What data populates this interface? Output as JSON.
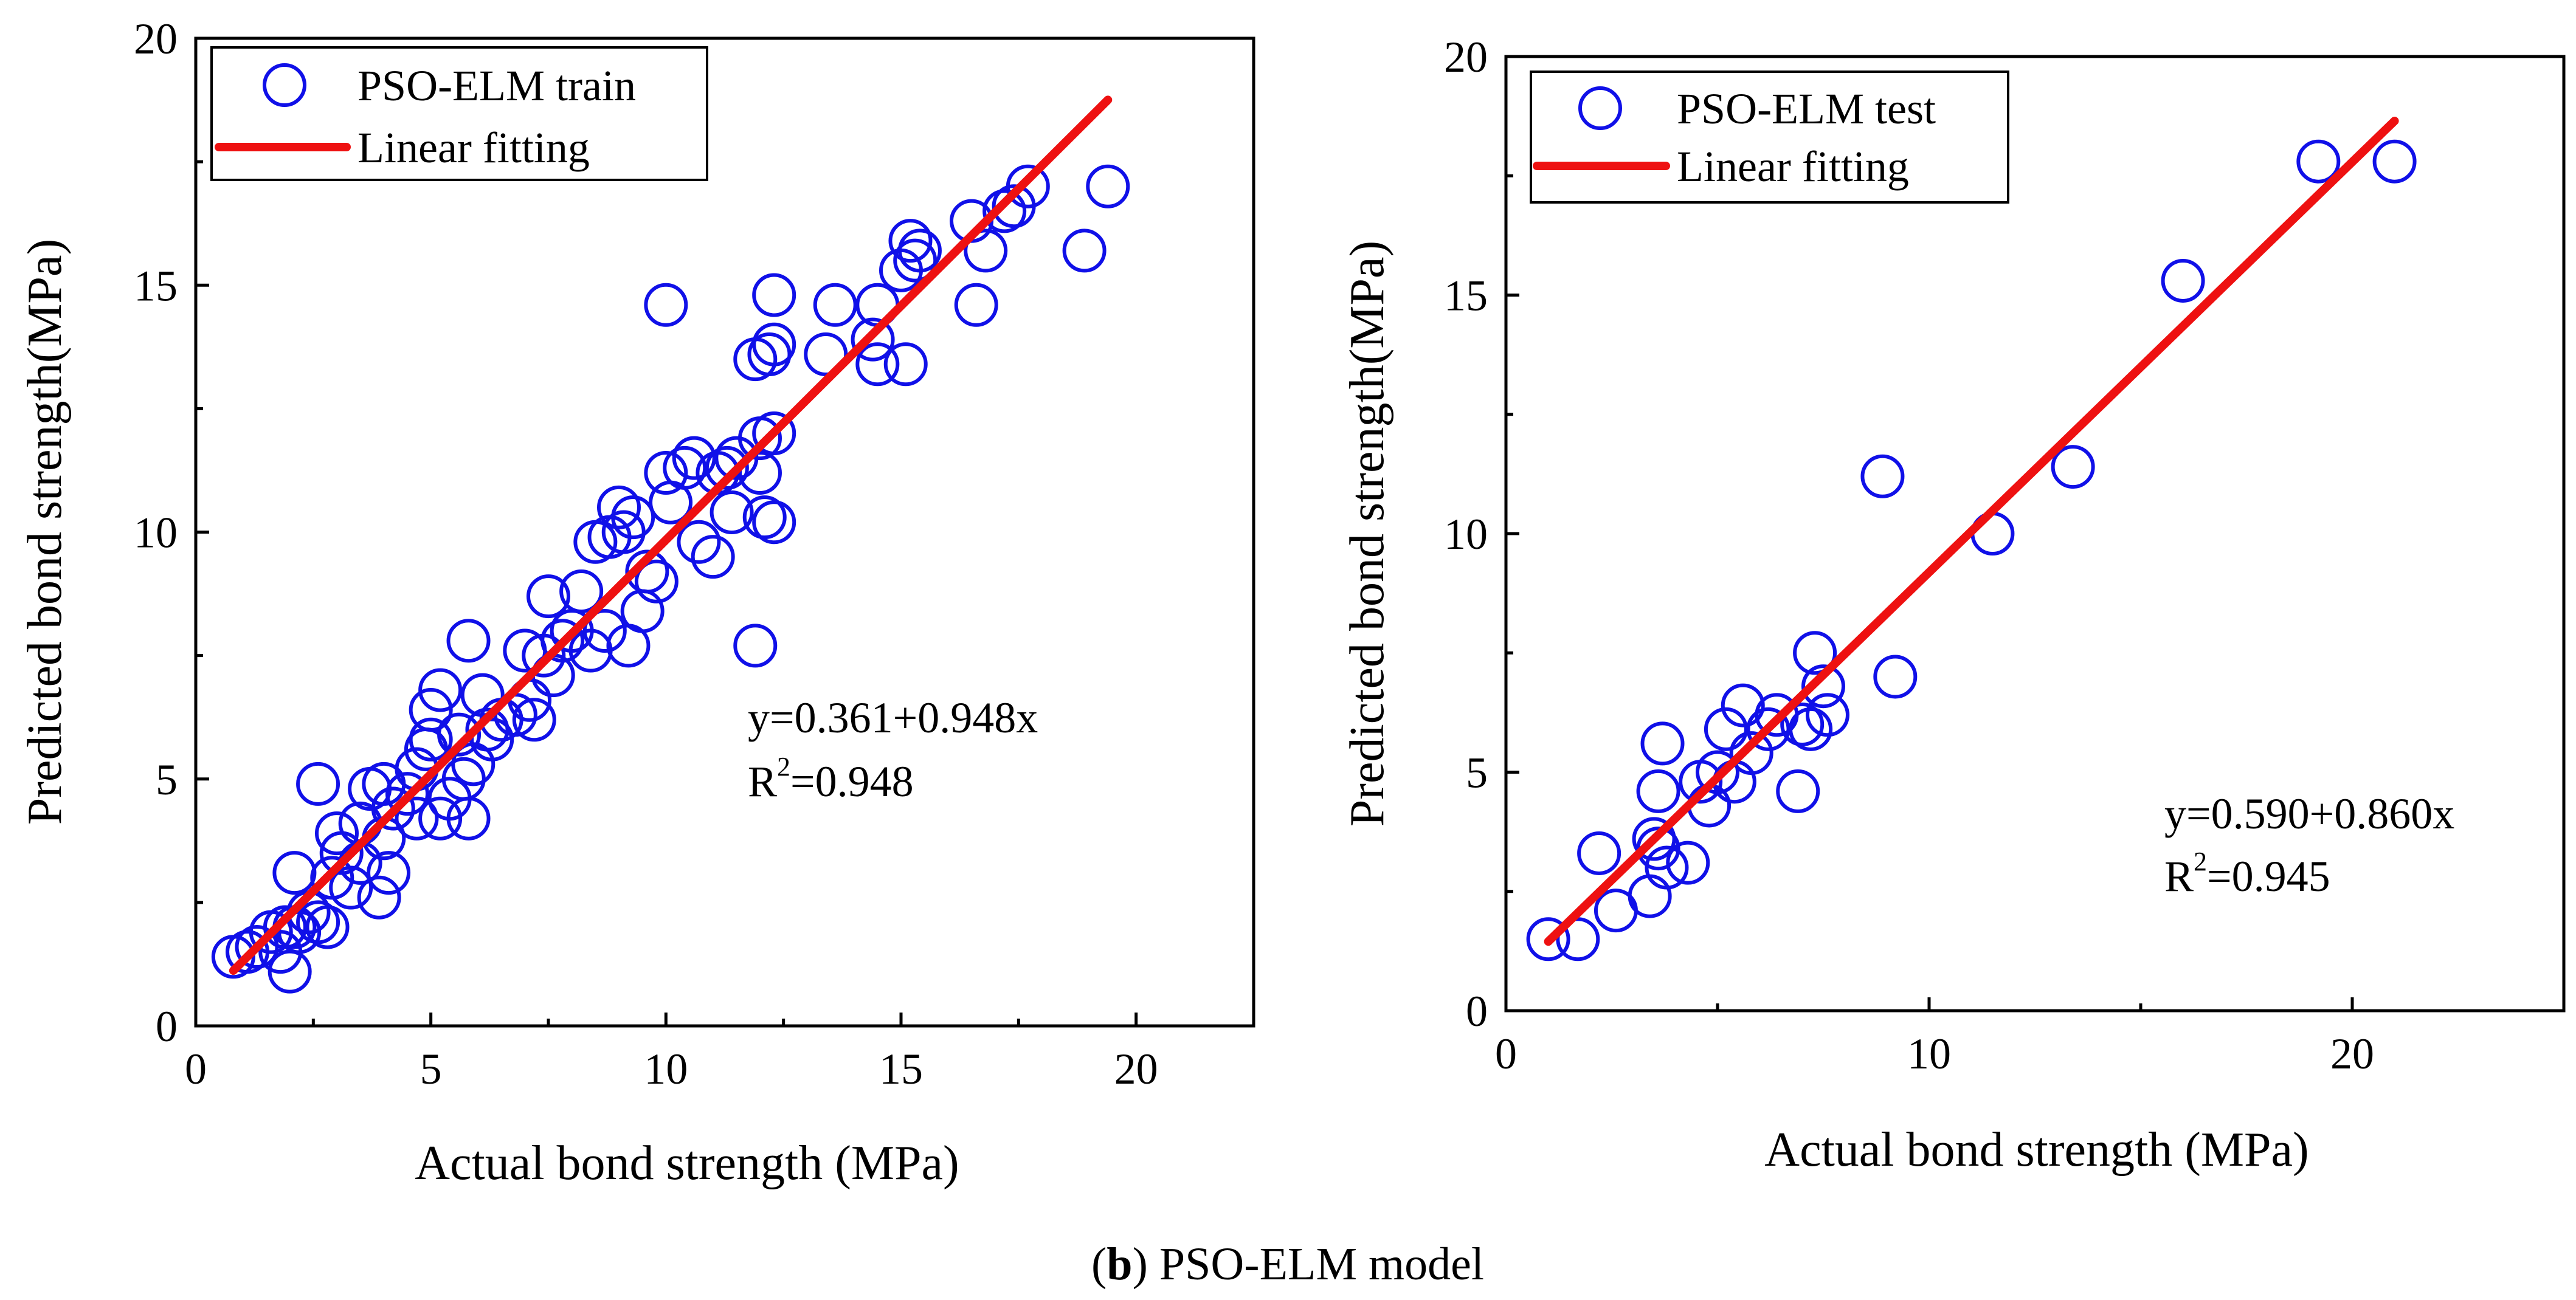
{
  "caption": {
    "letter": "b",
    "text": "PSO-ELM model"
  },
  "chart_data": [
    {
      "type": "scatter",
      "xlabel": "Actual bond strength (MPa)",
      "ylabel": "Predicted bond strength(MPa)",
      "xlim": [
        0,
        22.5
      ],
      "ylim": [
        0,
        20
      ],
      "xticks": [
        "0",
        "5",
        "10",
        "15",
        "20"
      ],
      "yticks": [
        "0",
        "5",
        "10",
        "15",
        "20"
      ],
      "legend": {
        "points": "PSO-ELM train",
        "line": "Linear fitting",
        "position": "top-left"
      },
      "equation": "y=0.361+0.948x",
      "r2_prefix": "R",
      "r2_sup": "2",
      "r2_value": "=0.948",
      "fit": {
        "intercept": 0.361,
        "slope": 0.948,
        "x_range": [
          0.8,
          19.4
        ]
      },
      "colors": {
        "points": "#1010e8",
        "line": "#ee1111"
      },
      "points": [
        [
          0.8,
          1.4
        ],
        [
          1.1,
          1.5
        ],
        [
          1.3,
          1.6
        ],
        [
          1.6,
          1.9
        ],
        [
          1.8,
          1.5
        ],
        [
          2.0,
          1.1
        ],
        [
          1.9,
          2.0
        ],
        [
          2.1,
          2.0
        ],
        [
          2.2,
          1.9
        ],
        [
          2.1,
          3.1
        ],
        [
          2.4,
          2.3
        ],
        [
          2.6,
          2.1
        ],
        [
          2.8,
          2.0
        ],
        [
          2.6,
          4.9
        ],
        [
          2.9,
          3.0
        ],
        [
          3.0,
          3.9
        ],
        [
          3.1,
          3.5
        ],
        [
          3.3,
          2.8
        ],
        [
          3.5,
          3.3
        ],
        [
          3.5,
          4.1
        ],
        [
          3.7,
          4.8
        ],
        [
          3.9,
          2.6
        ],
        [
          4.0,
          3.8
        ],
        [
          4.0,
          4.9
        ],
        [
          4.1,
          3.1
        ],
        [
          4.2,
          4.4
        ],
        [
          4.5,
          4.7
        ],
        [
          4.7,
          5.2
        ],
        [
          4.7,
          4.2
        ],
        [
          4.9,
          5.6
        ],
        [
          5.0,
          6.4
        ],
        [
          5.0,
          5.8
        ],
        [
          5.2,
          6.8
        ],
        [
          5.2,
          4.2
        ],
        [
          5.4,
          4.6
        ],
        [
          5.6,
          5.9
        ],
        [
          5.7,
          5.0
        ],
        [
          5.8,
          4.2
        ],
        [
          5.8,
          7.8
        ],
        [
          5.9,
          5.3
        ],
        [
          6.1,
          6.7
        ],
        [
          6.2,
          6.0
        ],
        [
          6.3,
          5.8
        ],
        [
          6.5,
          6.2
        ],
        [
          6.8,
          6.3
        ],
        [
          7.0,
          7.6
        ],
        [
          7.1,
          6.6
        ],
        [
          7.2,
          6.2
        ],
        [
          7.4,
          7.5
        ],
        [
          7.5,
          8.7
        ],
        [
          7.6,
          7.1
        ],
        [
          7.8,
          7.8
        ],
        [
          8.0,
          8.0
        ],
        [
          8.2,
          8.8
        ],
        [
          8.4,
          7.6
        ],
        [
          8.5,
          9.8
        ],
        [
          8.7,
          8.0
        ],
        [
          8.8,
          9.9
        ],
        [
          9.0,
          10.5
        ],
        [
          9.1,
          10.0
        ],
        [
          9.2,
          7.7
        ],
        [
          9.3,
          10.3
        ],
        [
          9.5,
          8.4
        ],
        [
          9.6,
          9.2
        ],
        [
          9.8,
          9.0
        ],
        [
          10.0,
          11.2
        ],
        [
          10.1,
          10.6
        ],
        [
          10.4,
          11.3
        ],
        [
          10.6,
          11.5
        ],
        [
          10.7,
          9.8
        ],
        [
          11.0,
          9.5
        ],
        [
          11.1,
          11.2
        ],
        [
          11.3,
          11.3
        ],
        [
          11.5,
          11.5
        ],
        [
          11.4,
          10.4
        ],
        [
          11.9,
          13.5
        ],
        [
          11.9,
          7.7
        ],
        [
          12.0,
          11.2
        ],
        [
          12.0,
          11.9
        ],
        [
          12.1,
          10.3
        ],
        [
          12.2,
          13.6
        ],
        [
          12.3,
          13.8
        ],
        [
          12.3,
          14.8
        ],
        [
          12.3,
          12.0
        ],
        [
          12.3,
          10.2
        ],
        [
          10.0,
          14.6
        ],
        [
          13.4,
          13.6
        ],
        [
          13.6,
          14.6
        ],
        [
          14.4,
          13.9
        ],
        [
          14.5,
          14.6
        ],
        [
          14.5,
          13.4
        ],
        [
          15.0,
          15.3
        ],
        [
          15.1,
          13.4
        ],
        [
          15.2,
          15.9
        ],
        [
          15.3,
          15.5
        ],
        [
          15.4,
          15.7
        ],
        [
          16.5,
          16.3
        ],
        [
          16.6,
          14.6
        ],
        [
          16.8,
          15.7
        ],
        [
          17.2,
          16.5
        ],
        [
          17.4,
          16.6
        ],
        [
          17.7,
          17.0
        ],
        [
          18.9,
          15.7
        ],
        [
          19.4,
          17.0
        ]
      ]
    },
    {
      "type": "scatter",
      "xlabel": "Actual bond strength (MPa)",
      "ylabel": "Predicted bond strength(MPa)",
      "xlim": [
        0,
        25
      ],
      "ylim": [
        0,
        20
      ],
      "xticks": [
        "0",
        "10",
        "20"
      ],
      "yticks": [
        "0",
        "5",
        "10",
        "15",
        "20"
      ],
      "legend": {
        "points": "PSO-ELM test",
        "line": "Linear fitting",
        "position": "top-left"
      },
      "equation": "y=0.590+0.860x",
      "r2_prefix": "R",
      "r2_sup": "2",
      "r2_value": "=0.945",
      "fit": {
        "intercept": 0.59,
        "slope": 0.86,
        "x_range": [
          1.0,
          21.0
        ]
      },
      "colors": {
        "points": "#1010e8",
        "line": "#ee1111"
      },
      "points": [
        [
          1.0,
          1.5
        ],
        [
          1.7,
          1.5
        ],
        [
          2.2,
          3.3
        ],
        [
          2.6,
          2.1
        ],
        [
          3.4,
          2.4
        ],
        [
          3.5,
          3.6
        ],
        [
          3.6,
          4.6
        ],
        [
          3.6,
          3.4
        ],
        [
          3.8,
          3.0
        ],
        [
          3.7,
          5.6
        ],
        [
          4.3,
          3.1
        ],
        [
          4.6,
          4.8
        ],
        [
          4.8,
          4.3
        ],
        [
          5.0,
          5.0
        ],
        [
          5.2,
          5.9
        ],
        [
          5.4,
          4.8
        ],
        [
          5.6,
          6.4
        ],
        [
          5.8,
          5.4
        ],
        [
          6.2,
          5.9
        ],
        [
          6.4,
          6.2
        ],
        [
          6.9,
          4.6
        ],
        [
          7.0,
          6.0
        ],
        [
          7.2,
          5.9
        ],
        [
          7.3,
          7.5
        ],
        [
          7.5,
          6.8
        ],
        [
          7.6,
          6.2
        ],
        [
          8.9,
          11.2
        ],
        [
          9.2,
          7.0
        ],
        [
          11.5,
          10.0
        ],
        [
          13.4,
          11.4
        ],
        [
          16.0,
          15.3
        ],
        [
          19.2,
          17.8
        ],
        [
          21.0,
          17.8
        ]
      ]
    }
  ]
}
